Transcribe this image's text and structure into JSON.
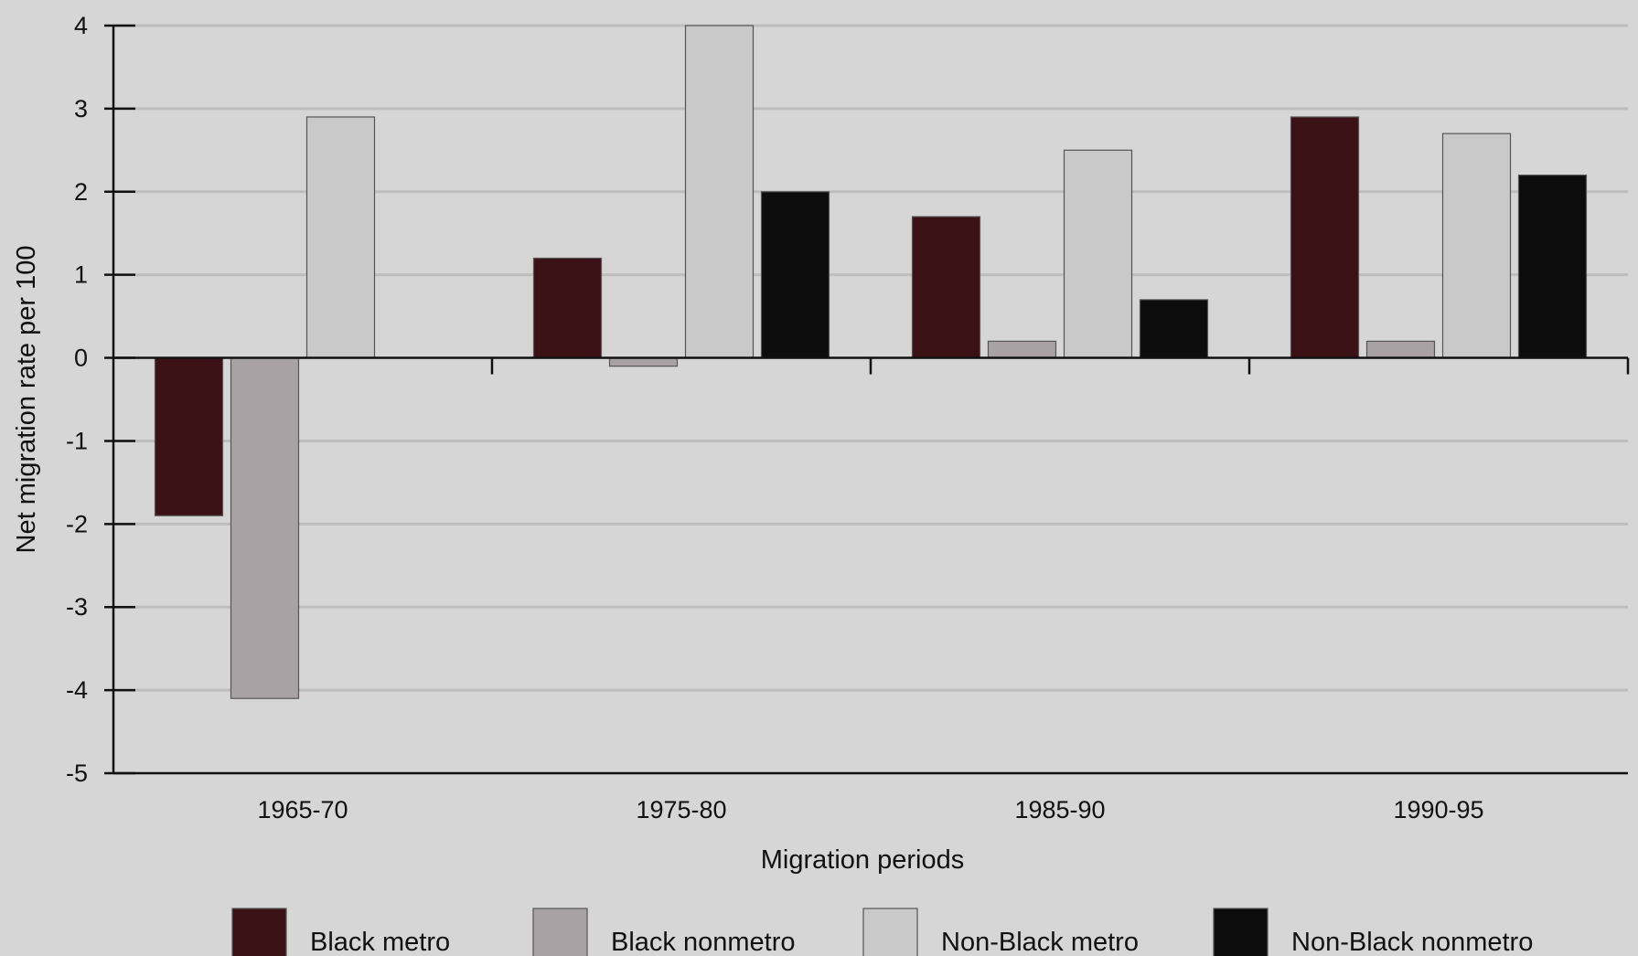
{
  "chart_data": {
    "type": "bar",
    "title": "",
    "xlabel": "Migration periods",
    "ylabel": "Net migration rate per 100",
    "categories": [
      "1965-70",
      "1975-80",
      "1985-90",
      "1990-95"
    ],
    "ylim": [
      -5,
      4
    ],
    "yticks": [
      4,
      3,
      2,
      1,
      0,
      -1,
      -2,
      -3,
      -4,
      -5
    ],
    "grid": true,
    "legend_position": "bottom",
    "series": [
      {
        "name": "Black metro",
        "color": "#3a1216",
        "values": [
          -1.9,
          1.2,
          1.7,
          2.9
        ]
      },
      {
        "name": "Black nonmetro",
        "color": "#a8a2a4",
        "values": [
          -4.1,
          -0.1,
          0.2,
          0.2
        ]
      },
      {
        "name": "Non-Black metro",
        "color": "#c9c9c9",
        "values": [
          2.9,
          4.0,
          2.5,
          2.7
        ]
      },
      {
        "name": "Non-Black nonmetro",
        "color": "#0c0c0c",
        "values": [
          0.0,
          2.0,
          0.7,
          2.2
        ]
      }
    ]
  }
}
